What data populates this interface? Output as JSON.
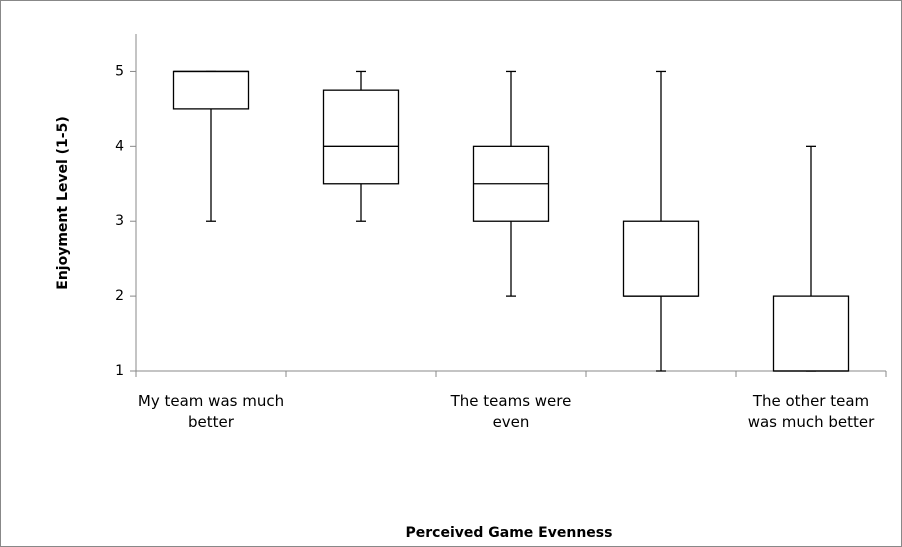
{
  "chart_data": {
    "type": "box",
    "x_label": "Perceived Game Evenness",
    "y_label": "Enjoyment Level (1-5)",
    "categories": [
      "My team was much better",
      null,
      "The teams were even",
      null,
      "The other team was much better"
    ],
    "boxes": [
      {
        "min": 3,
        "q1": 4.5,
        "median": 5,
        "q3": 5,
        "max": 5
      },
      {
        "min": 3,
        "q1": 3.5,
        "median": 4,
        "q3": 4.75,
        "max": 5
      },
      {
        "min": 2,
        "q1": 3,
        "median": 3.5,
        "q3": 4,
        "max": 5
      },
      {
        "min": 1,
        "q1": 2,
        "median": 2,
        "q3": 3,
        "max": 5
      },
      {
        "min": 1,
        "q1": 1,
        "median": 1,
        "q3": 2,
        "max": 4
      }
    ],
    "color": "#000000",
    "ylim": [
      1,
      5.5
    ],
    "yticks": [
      1,
      2,
      3,
      4,
      5
    ],
    "grid": false
  }
}
